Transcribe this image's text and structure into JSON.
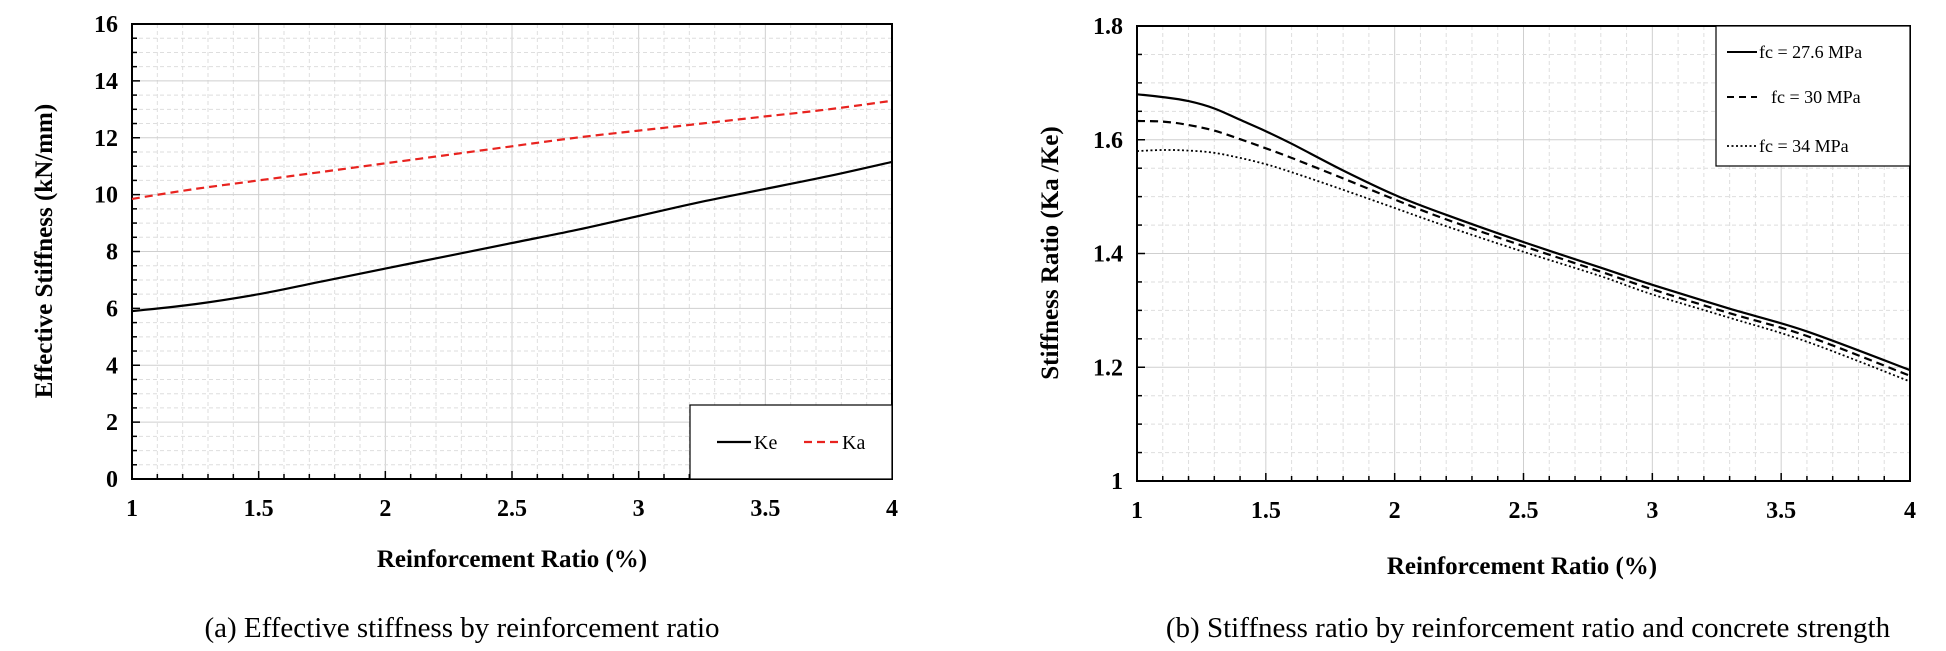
{
  "chart_data": [
    {
      "type": "line",
      "caption": "(a) Effective stiffness by reinforcement ratio",
      "xlabel": "Reinforcement Ratio (%)",
      "ylabel": "Effective Stiffness (kN/mm)",
      "xlim": [
        1,
        4
      ],
      "ylim": [
        0,
        16
      ],
      "xticks": [
        1,
        1.5,
        2,
        2.5,
        3,
        3.5,
        4
      ],
      "yticks": [
        0,
        2,
        4,
        6,
        8,
        10,
        12,
        14,
        16
      ],
      "grid": true,
      "legend_position": "bottom-right",
      "x": [
        1.0,
        1.25,
        1.5,
        1.75,
        2.0,
        2.25,
        2.5,
        2.75,
        3.0,
        3.25,
        3.5,
        3.75,
        4.0
      ],
      "series": [
        {
          "name": "Ke",
          "style": "solid",
          "color": "#000000",
          "values": [
            5.9,
            6.15,
            6.5,
            6.95,
            7.4,
            7.85,
            8.3,
            8.75,
            9.25,
            9.75,
            10.2,
            10.65,
            11.15
          ]
        },
        {
          "name": "Ka",
          "style": "dashed",
          "color": "#e8231f",
          "values": [
            9.85,
            10.2,
            10.5,
            10.8,
            11.1,
            11.4,
            11.7,
            12.0,
            12.25,
            12.5,
            12.75,
            13.0,
            13.3
          ]
        }
      ]
    },
    {
      "type": "line",
      "caption": "(b) Stiffness ratio by reinforcement ratio and concrete strength",
      "xlabel": "Reinforcement Ratio (%)",
      "ylabel": "Stiffness Ratio (Ka /Ke)",
      "xlim": [
        1,
        4
      ],
      "ylim": [
        1,
        1.8
      ],
      "xticks": [
        1,
        1.5,
        2,
        2.5,
        3,
        3.5,
        4
      ],
      "yticks": [
        1,
        1.2,
        1.4,
        1.6,
        1.8
      ],
      "grid": true,
      "legend_position": "top-right",
      "x": [
        1.0,
        1.1,
        1.2,
        1.3,
        1.4,
        1.5,
        1.6,
        1.8,
        2.0,
        2.2,
        2.5,
        2.8,
        3.0,
        3.3,
        3.6,
        4.0
      ],
      "series": [
        {
          "name": "fc = 27.6 MPa",
          "style": "solid",
          "color": "#000000",
          "values": [
            1.68,
            1.675,
            1.668,
            1.655,
            1.635,
            1.615,
            1.593,
            1.546,
            1.503,
            1.468,
            1.42,
            1.375,
            1.345,
            1.303,
            1.263,
            1.195
          ]
        },
        {
          "name": "fc = 30 MPa",
          "style": "dashed",
          "color": "#000000",
          "values": [
            1.633,
            1.632,
            1.626,
            1.616,
            1.601,
            1.585,
            1.568,
            1.532,
            1.495,
            1.46,
            1.413,
            1.368,
            1.337,
            1.295,
            1.255,
            1.185
          ]
        },
        {
          "name": "fc = 34 MPa",
          "style": "dotted",
          "color": "#000000",
          "values": [
            1.58,
            1.582,
            1.581,
            1.577,
            1.568,
            1.557,
            1.543,
            1.512,
            1.48,
            1.448,
            1.403,
            1.36,
            1.328,
            1.287,
            1.245,
            1.175
          ]
        }
      ]
    }
  ]
}
